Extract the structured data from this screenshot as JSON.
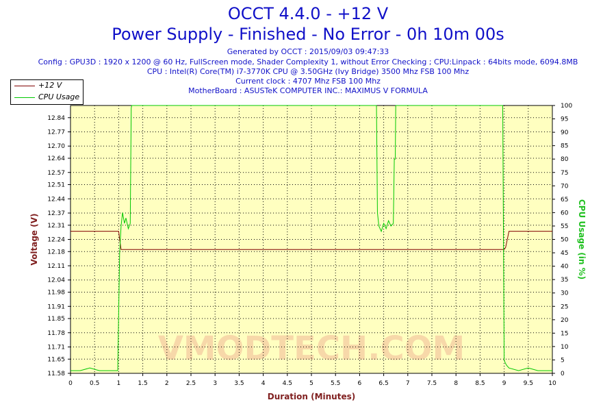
{
  "header": {
    "title": "OCCT 4.4.0 - +12 V",
    "subtitle": "Power Supply - Finished - No Error - 0h 10m 00s",
    "info": [
      "Generated by OCCT : 2015/09/03 09:47:33",
      "Config : GPU3D : 1920 x 1200 @ 60 Hz, FullScreen mode, Shader Complexity 1, without Error Checking ; CPU:Linpack : 64bits mode, 6094.8MB",
      "CPU : Intel(R) Core(TM) i7-3770K CPU @ 3.50GHz (Ivy Bridge) 3500 Mhz FSB 100 Mhz",
      "Current clock : 4707 Mhz FSB 100 Mhz",
      "MotherBoard : ASUSTeK COMPUTER INC.: MAXIMUS V FORMULA"
    ]
  },
  "legend": [
    {
      "label": "+12 V",
      "color": "#800000"
    },
    {
      "label": "CPU Usage",
      "color": "#00c800"
    }
  ],
  "colors": {
    "background": "#ffffc0",
    "grid": "#000000",
    "voltage": "#800000",
    "cpu": "#00c800",
    "title": "#1010c8",
    "watermark": "#f4c8a0"
  },
  "watermark": {
    "text": "VMODTECH.COM"
  },
  "chart_data": {
    "type": "line",
    "xlabel": "Duration (Minutes)",
    "ylabel_left": "Voltage (V)",
    "ylabel_right": "CPU Usage (in %)",
    "xlim": [
      0,
      10
    ],
    "ylim_left": [
      11.58,
      12.9
    ],
    "ylim_right": [
      0,
      100
    ],
    "x_ticks": [
      "0",
      "0.5",
      "1",
      "1.5",
      "2",
      "2.5",
      "3",
      "3.5",
      "4",
      "4.5",
      "5",
      "5.5",
      "6",
      "6.5",
      "7",
      "7.5",
      "8",
      "8.5",
      "9",
      "9.5",
      "10"
    ],
    "y_left_ticks": [
      "11.58",
      "11.65",
      "11.71",
      "11.78",
      "11.85",
      "11.91",
      "11.98",
      "12.04",
      "12.11",
      "12.18",
      "12.24",
      "12.31",
      "12.37",
      "12.44",
      "12.51",
      "12.57",
      "12.64",
      "12.70",
      "12.77",
      "12.84"
    ],
    "y_right_ticks": [
      "0",
      "5",
      "10",
      "15",
      "20",
      "25",
      "30",
      "35",
      "40",
      "45",
      "50",
      "55",
      "60",
      "65",
      "70",
      "75",
      "80",
      "85",
      "90",
      "95",
      "100"
    ],
    "grid": true,
    "legend_position": "top-left",
    "series": [
      {
        "name": "+12 V",
        "axis": "left",
        "x": [
          0,
          1.0,
          1.02,
          1.05,
          9.0,
          9.03,
          9.1,
          10
        ],
        "values": [
          12.28,
          12.28,
          12.24,
          12.19,
          12.19,
          12.2,
          12.28,
          12.28
        ]
      },
      {
        "name": "CPU Usage",
        "axis": "right",
        "x": [
          0,
          0.2,
          0.4,
          0.6,
          0.8,
          0.98,
          1.02,
          1.05,
          1.08,
          1.12,
          1.15,
          1.2,
          1.24,
          1.26,
          1.27,
          2,
          3,
          4,
          5,
          6,
          6.35,
          6.37,
          6.4,
          6.45,
          6.5,
          6.55,
          6.6,
          6.65,
          6.7,
          6.72,
          6.74,
          6.75,
          6.76,
          8,
          8.9,
          8.97,
          9.0,
          9.02,
          9.05,
          9.1,
          9.3,
          9.5,
          9.7,
          9.9,
          10
        ],
        "values": [
          1,
          1,
          2,
          1,
          1,
          1,
          45,
          55,
          60,
          56,
          58,
          54,
          56,
          99,
          100,
          100,
          100,
          100,
          100,
          100,
          100,
          60,
          55,
          53,
          56,
          54,
          57,
          55,
          56,
          80,
          80,
          100,
          100,
          100,
          100,
          100,
          5,
          4,
          3,
          2,
          1,
          2,
          1,
          1,
          1
        ]
      }
    ]
  }
}
